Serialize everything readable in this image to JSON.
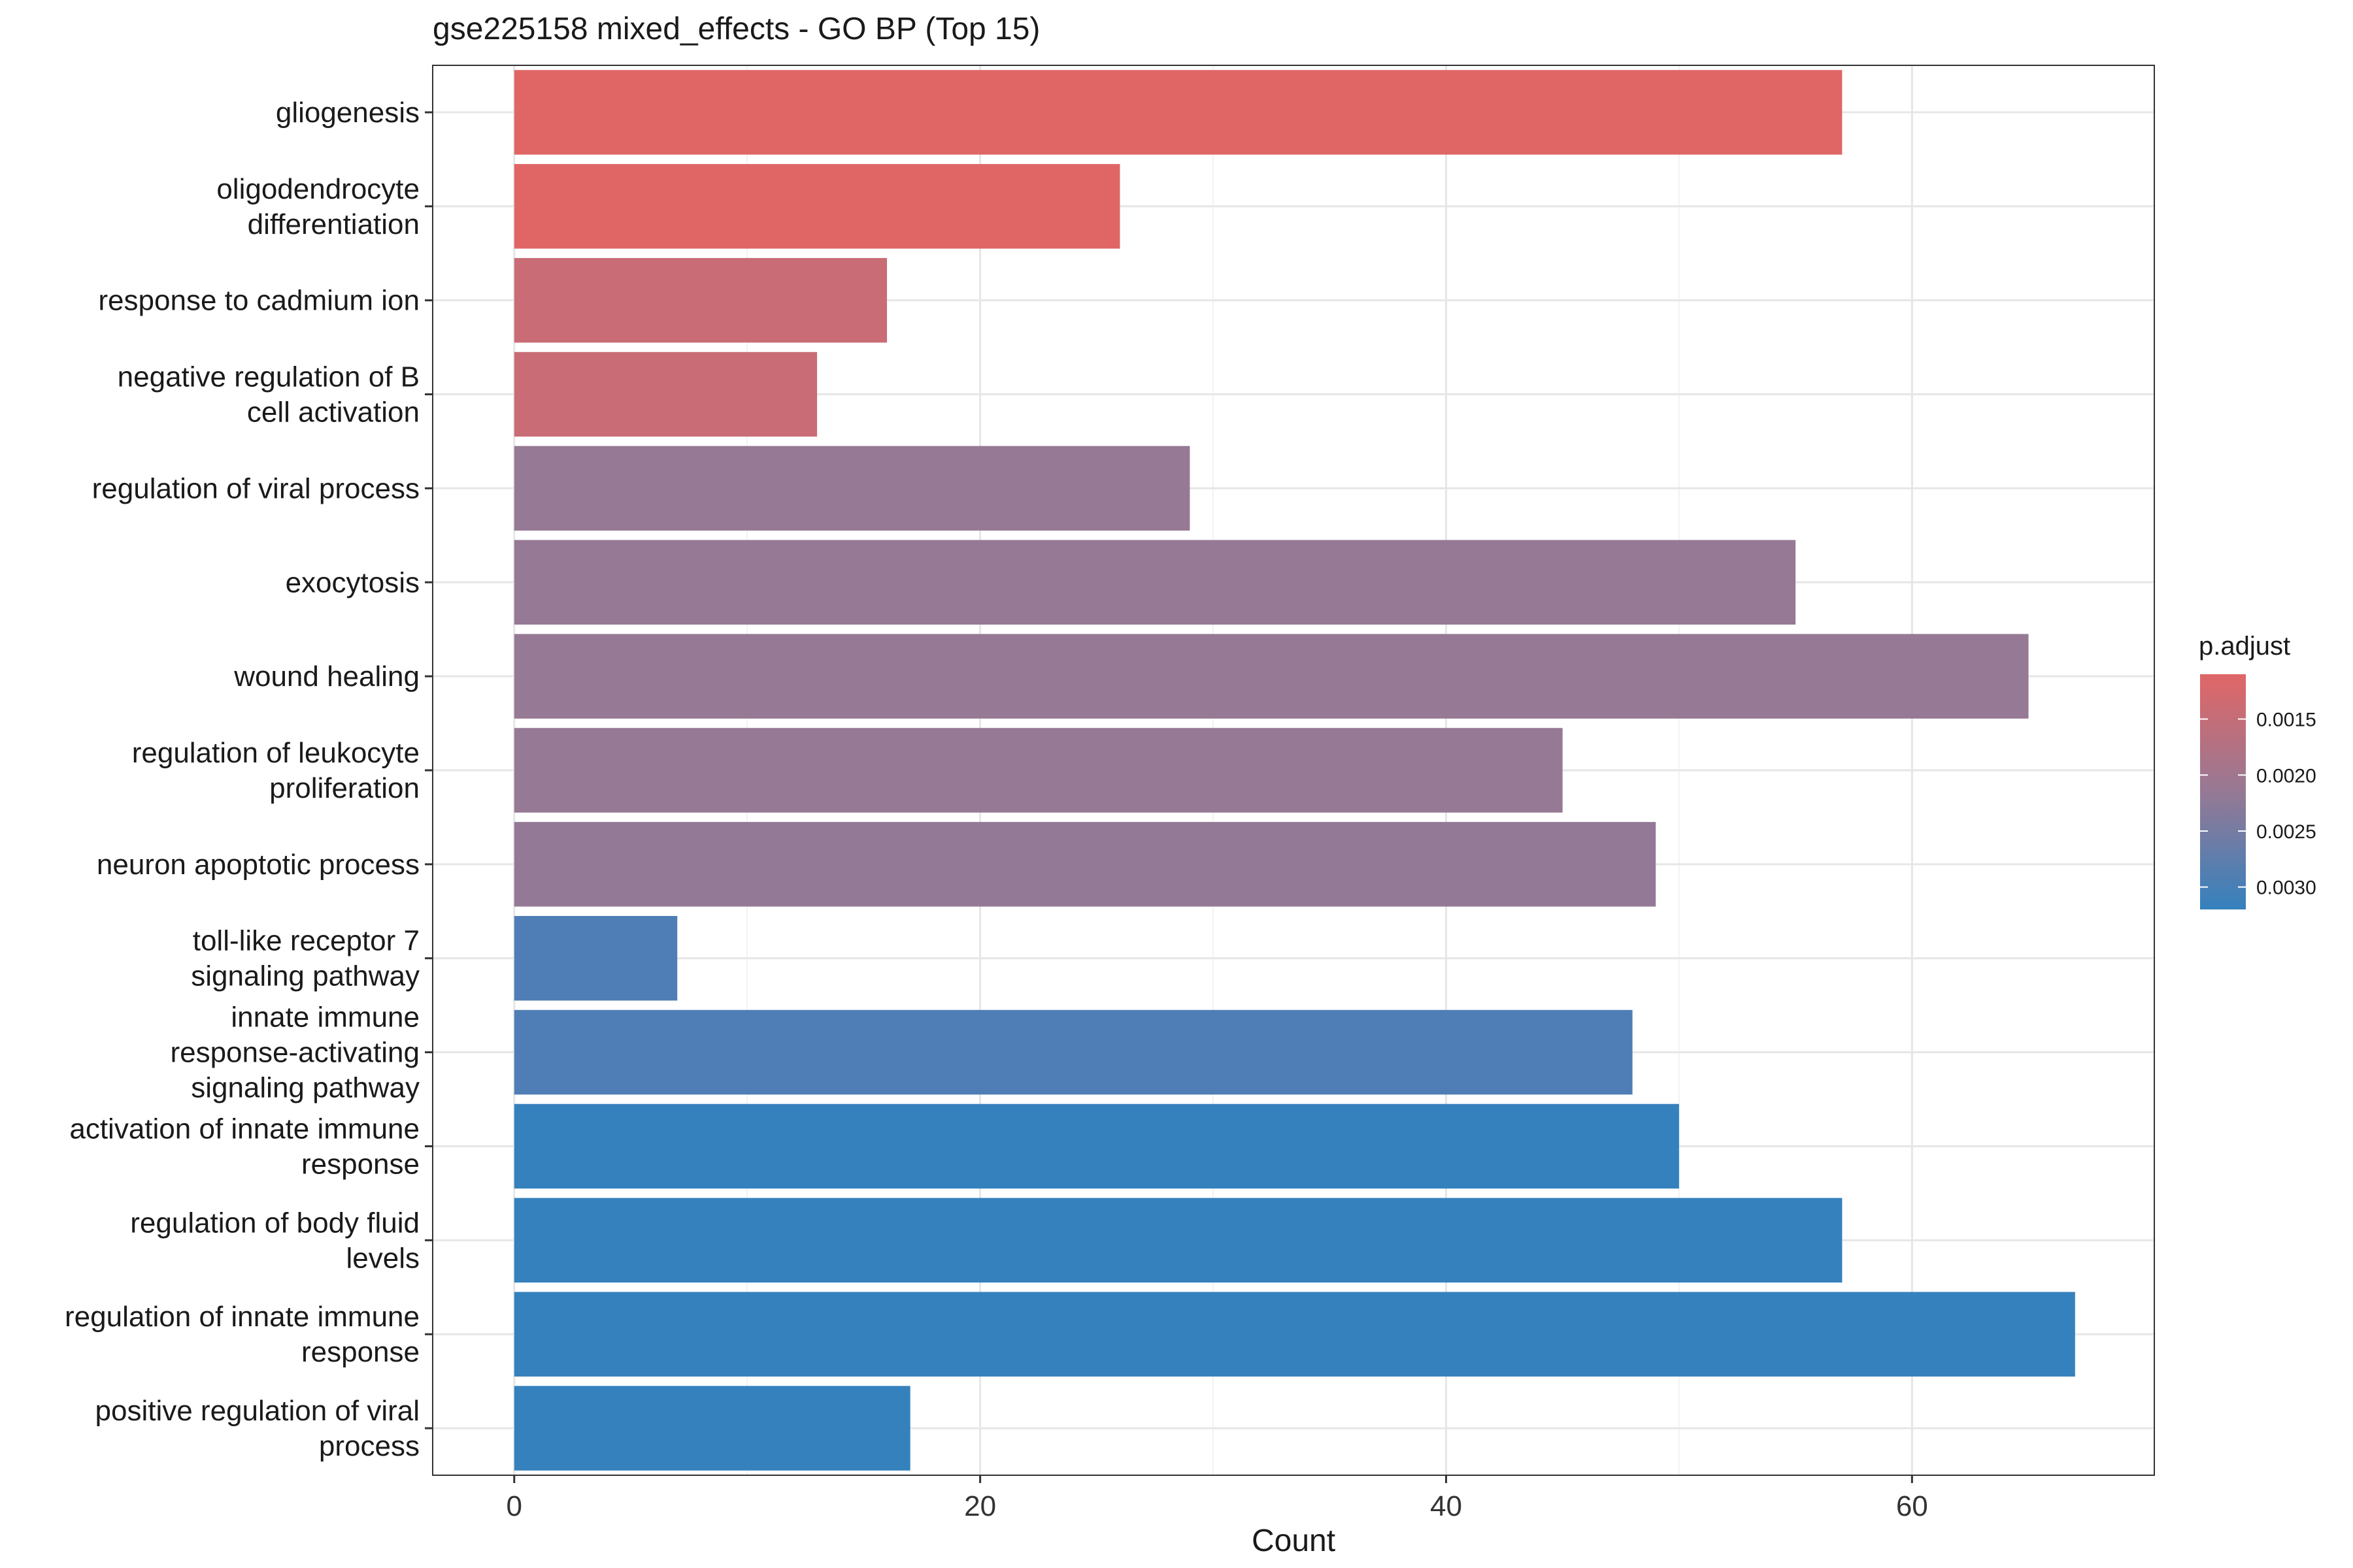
{
  "chart_data": {
    "type": "bar",
    "orientation": "horizontal",
    "title": "gse225158 mixed_effects - GO BP (Top 15)",
    "xlabel": "Count",
    "ylabel": "",
    "xlim": [
      -3.5,
      70.4
    ],
    "xticks": [
      0,
      20,
      40,
      60
    ],
    "grid": true,
    "legend_position": "right",
    "categories": [
      [
        "gliogenesis"
      ],
      [
        "oligodendrocyte",
        "differentiation"
      ],
      [
        "response to cadmium ion"
      ],
      [
        "negative regulation of B",
        "cell activation"
      ],
      [
        "regulation of viral process"
      ],
      [
        "exocytosis"
      ],
      [
        "wound healing"
      ],
      [
        "regulation of leukocyte",
        "proliferation"
      ],
      [
        "neuron apoptotic process"
      ],
      [
        "toll-like receptor 7",
        "signaling pathway"
      ],
      [
        "innate immune",
        "response-activating",
        "signaling pathway"
      ],
      [
        "activation of innate immune",
        "response"
      ],
      [
        "regulation of body fluid",
        "levels"
      ],
      [
        "regulation of innate immune",
        "response"
      ],
      [
        "positive regulation of viral",
        "process"
      ]
    ],
    "values": [
      57,
      26,
      16,
      13,
      29,
      55,
      65,
      45,
      49,
      7,
      48,
      50,
      57,
      67,
      17
    ],
    "p_adjust": [
      0.0013,
      0.0013,
      0.0019,
      0.0019,
      0.0025,
      0.0025,
      0.0025,
      0.0025,
      0.0025,
      0.0029,
      0.0029,
      0.0032,
      0.0032,
      0.0032,
      0.0032
    ],
    "colors": [
      "#E06666",
      "#E06666",
      "#C96C76",
      "#C96C76",
      "#967995",
      "#967995",
      "#967995",
      "#967995",
      "#937996",
      "#4E7EB5",
      "#4E7EB5",
      "#3581BD",
      "#3581BD",
      "#3581BD",
      "#3581BD"
    ],
    "colorbar": {
      "title": "p.adjust",
      "ticks": [
        "0.0015",
        "0.0020",
        "0.0025",
        "0.0030"
      ],
      "tick_values": [
        0.0015,
        0.002,
        0.0025,
        0.003
      ],
      "range": [
        0.0011,
        0.0032
      ],
      "low_color": "#E06666",
      "mid_color": "#967995",
      "high_color": "#3581BD"
    }
  }
}
